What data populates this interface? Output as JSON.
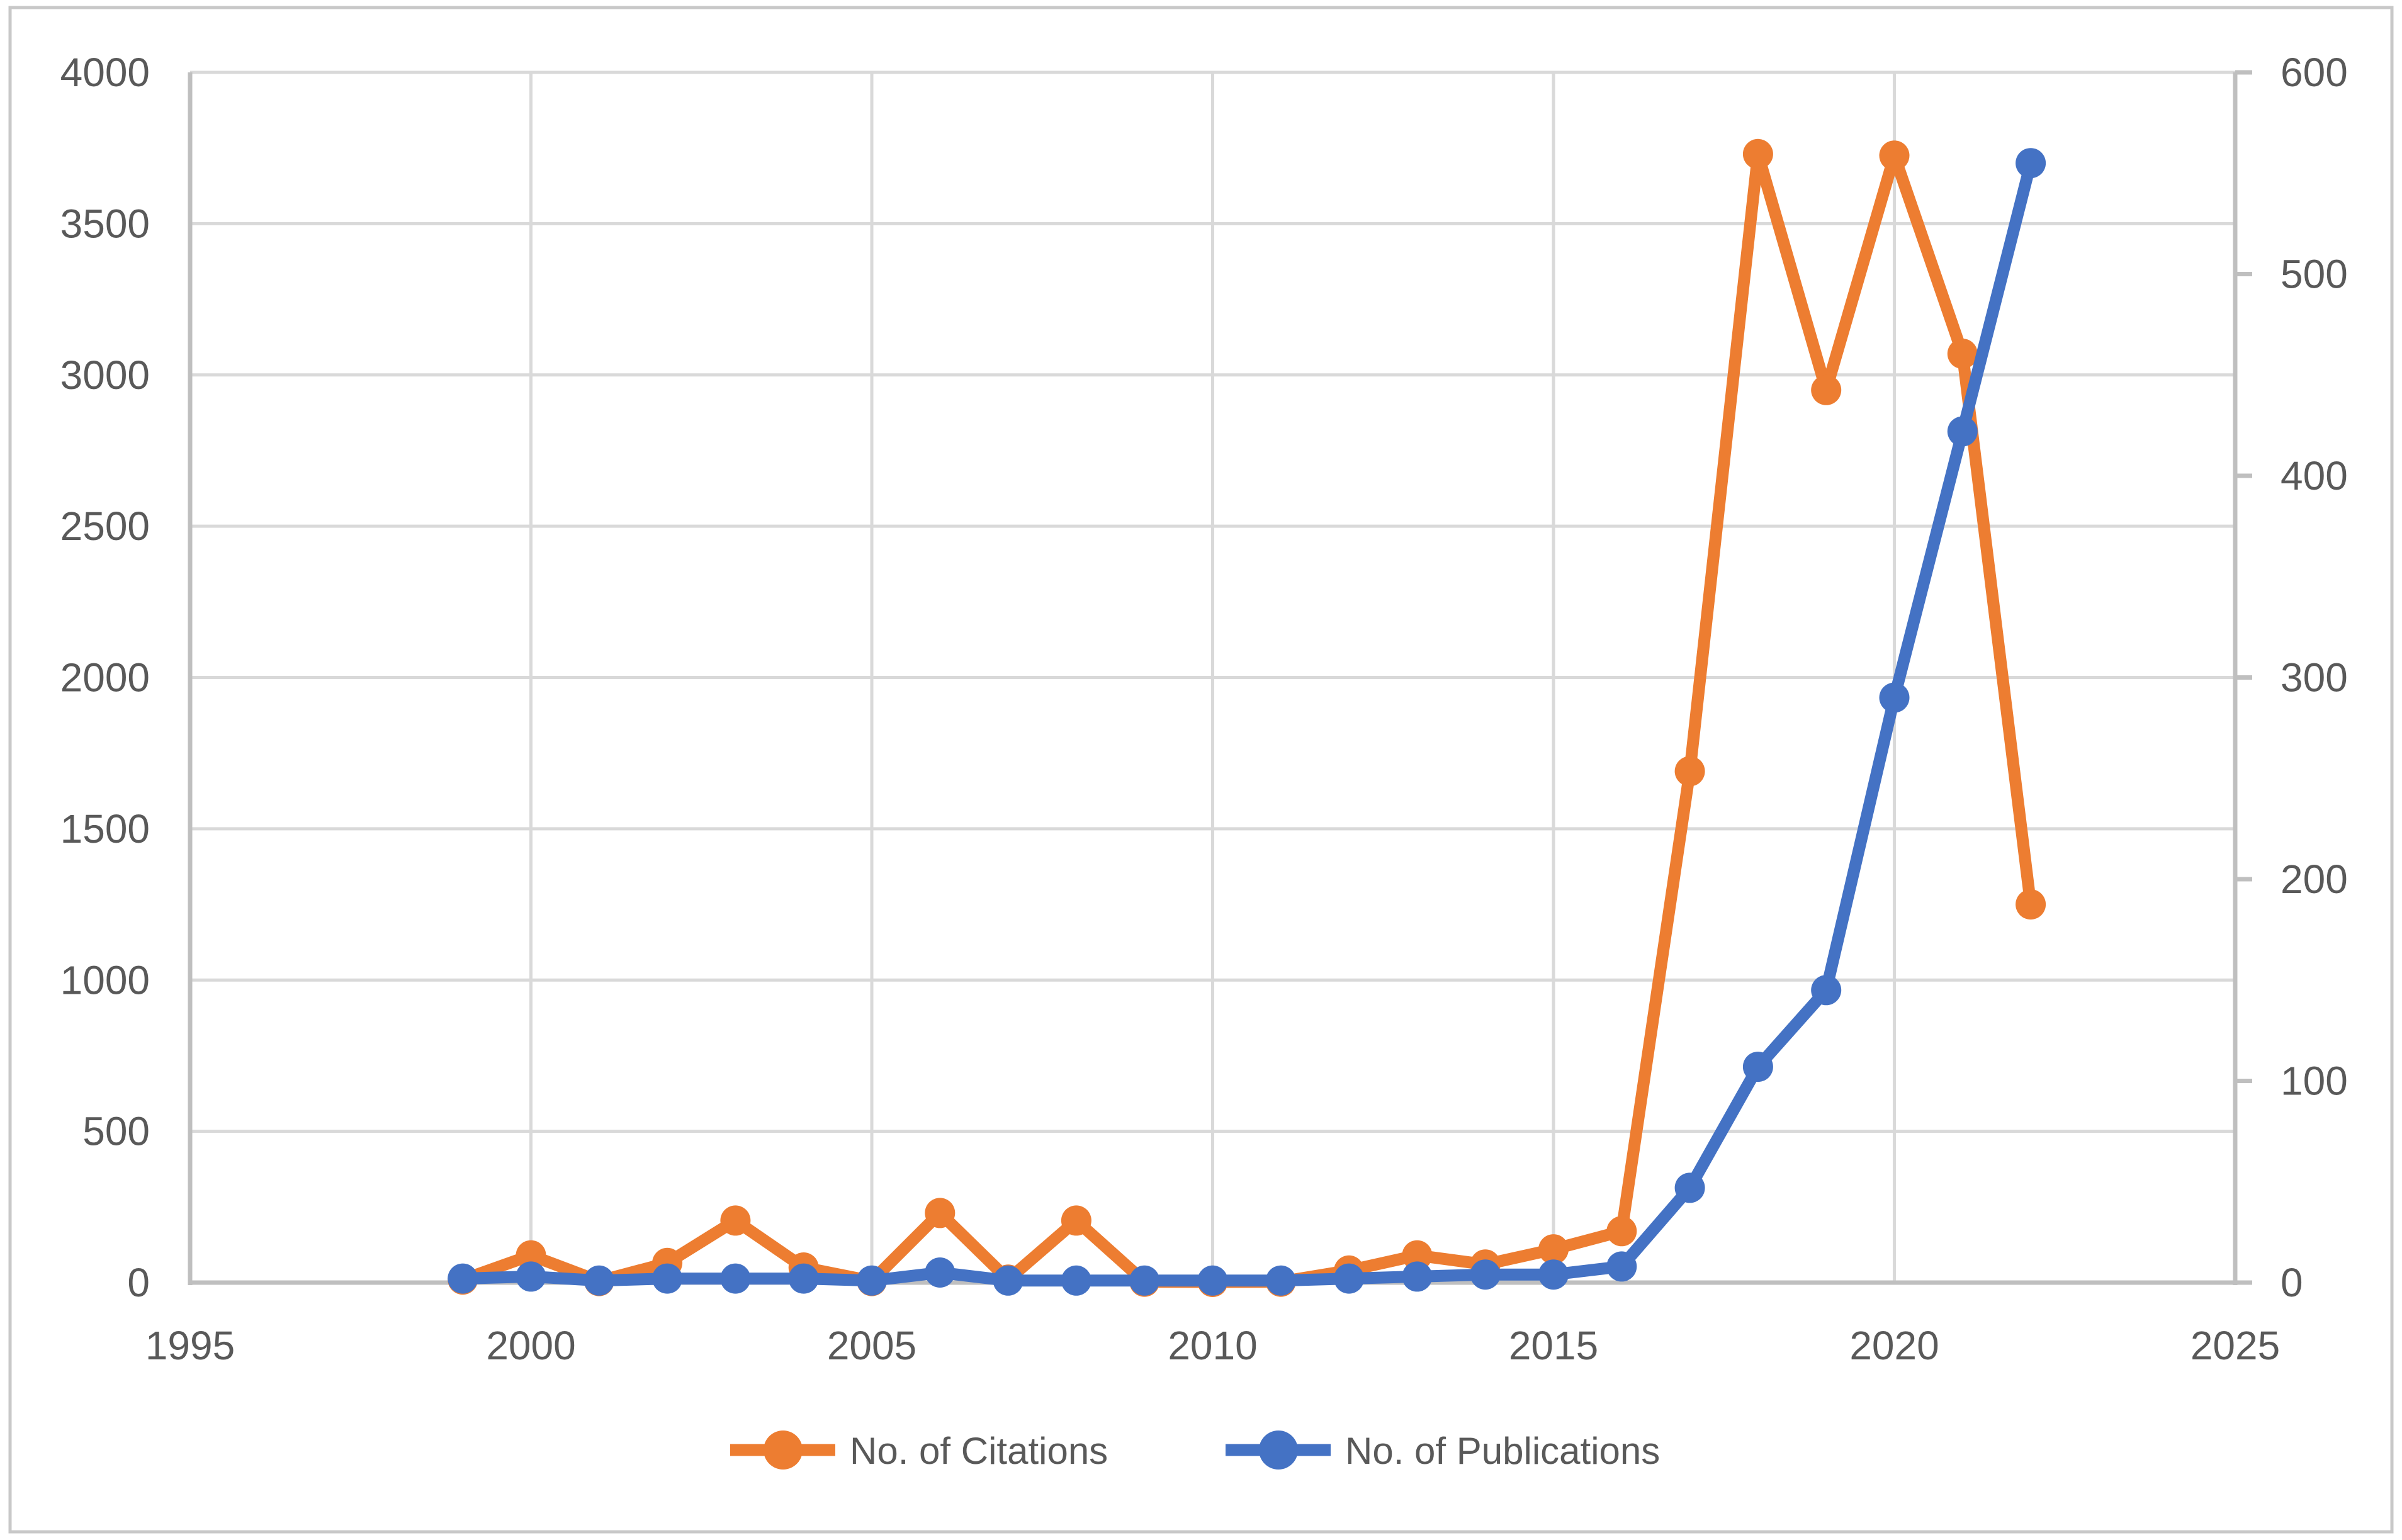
{
  "figure": {
    "legend": {
      "citations_label": "No. of Citations",
      "publications_label": "No. of Publications"
    }
  },
  "colors": {
    "citations": "#ED7D31",
    "publications": "#4472C4",
    "grid": "#D9D9D9",
    "axis_line": "#BFBFBF",
    "tick_text": "#595959",
    "border": "#C8C8C8",
    "background": "#FFFFFF"
  },
  "chart_data": {
    "type": "line",
    "title": "",
    "xlabel": "",
    "ylabel_left": "",
    "ylabel_right": "",
    "x": [
      1999,
      2000,
      2001,
      2002,
      2003,
      2004,
      2005,
      2006,
      2007,
      2008,
      2009,
      2010,
      2011,
      2012,
      2013,
      2014,
      2015,
      2016,
      2017,
      2018,
      2019,
      2020,
      2021,
      2022
    ],
    "series": [
      {
        "name": "No. of Citations",
        "axis": "left",
        "color": "#ED7D31",
        "values": [
          10,
          90,
          5,
          65,
          205,
          50,
          5,
          230,
          10,
          205,
          3,
          2,
          3,
          40,
          90,
          60,
          110,
          170,
          1690,
          3730,
          2950,
          3725,
          3070,
          1250
        ]
      },
      {
        "name": "No. of Publications",
        "axis": "right",
        "color": "#4472C4",
        "values": [
          2,
          3,
          1,
          2,
          2,
          2,
          1,
          5,
          1,
          1,
          1,
          1,
          1,
          2,
          3,
          4,
          4,
          8,
          47,
          107,
          145,
          290,
          422,
          555
        ]
      }
    ],
    "left_axis": {
      "min": 0,
      "max": 4000,
      "tick_interval": 500,
      "ticks": [
        "0",
        "500",
        "1000",
        "1500",
        "2000",
        "2500",
        "3000",
        "3500",
        "4000"
      ]
    },
    "right_axis": {
      "min": 0,
      "max": 600,
      "tick_interval": 100,
      "ticks": [
        "0",
        "100",
        "200",
        "300",
        "400",
        "500",
        "600"
      ]
    },
    "x_axis": {
      "min": 1995,
      "max": 2025,
      "tick_interval": 5,
      "ticks": [
        "1995",
        "2000",
        "2005",
        "2010",
        "2015",
        "2020",
        "2025"
      ]
    },
    "grid": true,
    "legend_position": "bottom-center"
  }
}
